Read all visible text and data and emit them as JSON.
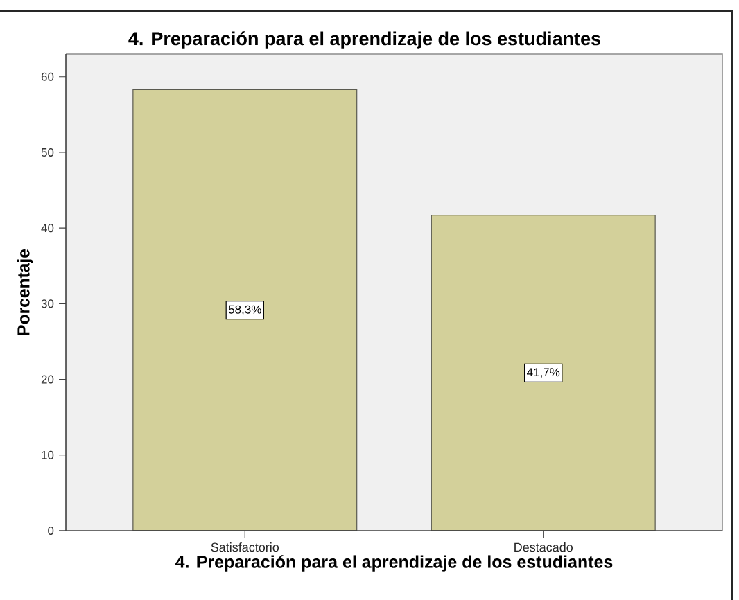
{
  "chart_data": {
    "type": "bar",
    "title": "4. Preparación para el aprendizaje de los estudiantes",
    "xlabel": "4. Preparación para el aprendizaje de los estudiantes",
    "ylabel": "Porcentaje",
    "categories": [
      "Satisfactorio",
      "Destacado"
    ],
    "values": [
      58.3,
      41.7
    ],
    "color": "#d3d09a",
    "value_labels": [
      "58,3%",
      "41,7%"
    ],
    "ylim": [
      0,
      63
    ],
    "yticks": [
      0,
      10,
      20,
      30,
      40,
      50,
      60
    ]
  }
}
